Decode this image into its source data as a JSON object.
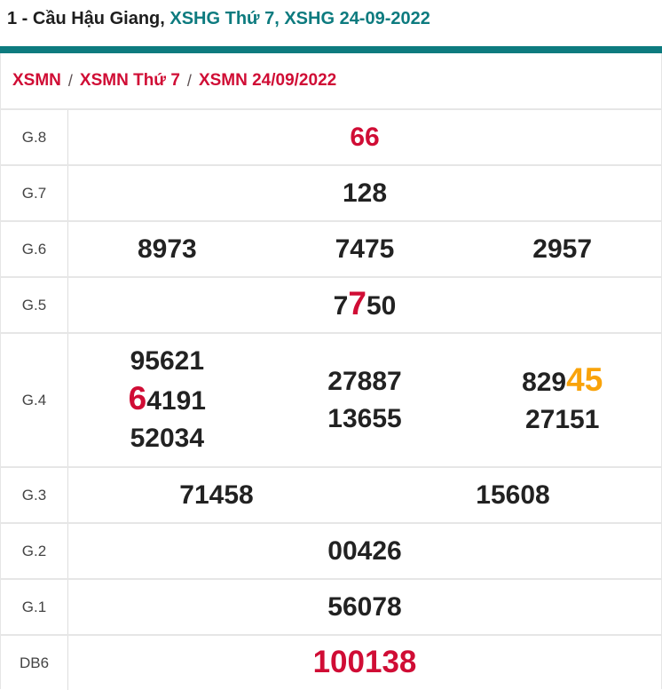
{
  "page": {
    "title": {
      "text_dark": "1 - Cầu Hậu Giang,",
      "link_weekday": "XSHG Thứ 7,",
      "link_date": "XSHG 24-09-2022"
    },
    "breadcrumb": {
      "separator": "/",
      "items": [
        "XSMN",
        "XSMN Thứ 7",
        "XSMN 24/09/2022"
      ]
    }
  },
  "colors": {
    "teal": "#0d7b7f",
    "crimson": "#d00d35",
    "orange": "#f9a30a",
    "number": "#222222",
    "label": "#444444",
    "border": "#e6e6e6"
  },
  "table": {
    "rows": [
      {
        "label": "G.8",
        "cols": [
          [
            [
              {
                "t": "66",
                "hl": "red"
              }
            ]
          ]
        ]
      },
      {
        "label": "G.7",
        "cols": [
          [
            [
              {
                "t": "128"
              }
            ]
          ]
        ]
      },
      {
        "label": "G.6",
        "cols": [
          [
            [
              {
                "t": "8973"
              }
            ]
          ],
          [
            [
              {
                "t": "7475"
              }
            ]
          ],
          [
            [
              {
                "t": "2957"
              }
            ]
          ]
        ]
      },
      {
        "label": "G.5",
        "cols": [
          [
            [
              {
                "t": "7"
              },
              {
                "t": "7",
                "hl": "red-big"
              },
              {
                "t": "50"
              }
            ]
          ]
        ]
      },
      {
        "label": "G.4",
        "cols": [
          [
            [
              {
                "t": "95621"
              }
            ],
            [
              {
                "t": "6",
                "hl": "red-big"
              },
              {
                "t": "4191"
              }
            ],
            [
              {
                "t": "52034"
              }
            ]
          ],
          [
            [
              {
                "t": "27887"
              }
            ],
            [
              {
                "t": "13655"
              }
            ]
          ],
          [
            [
              {
                "t": "829"
              },
              {
                "t": "45",
                "hl": "orange-big"
              }
            ],
            [
              {
                "t": "27151"
              }
            ]
          ]
        ]
      },
      {
        "label": "G.3",
        "cols": [
          [
            [
              {
                "t": "71458"
              }
            ]
          ],
          [
            [
              {
                "t": "15608"
              }
            ]
          ]
        ]
      },
      {
        "label": "G.2",
        "cols": [
          [
            [
              {
                "t": "00426"
              }
            ]
          ]
        ]
      },
      {
        "label": "G.1",
        "cols": [
          [
            [
              {
                "t": "56078"
              }
            ]
          ]
        ]
      },
      {
        "label": "DB6",
        "cols": [
          [
            [
              {
                "t": "100138",
                "hl": "red-xl"
              }
            ]
          ]
        ]
      }
    ]
  }
}
